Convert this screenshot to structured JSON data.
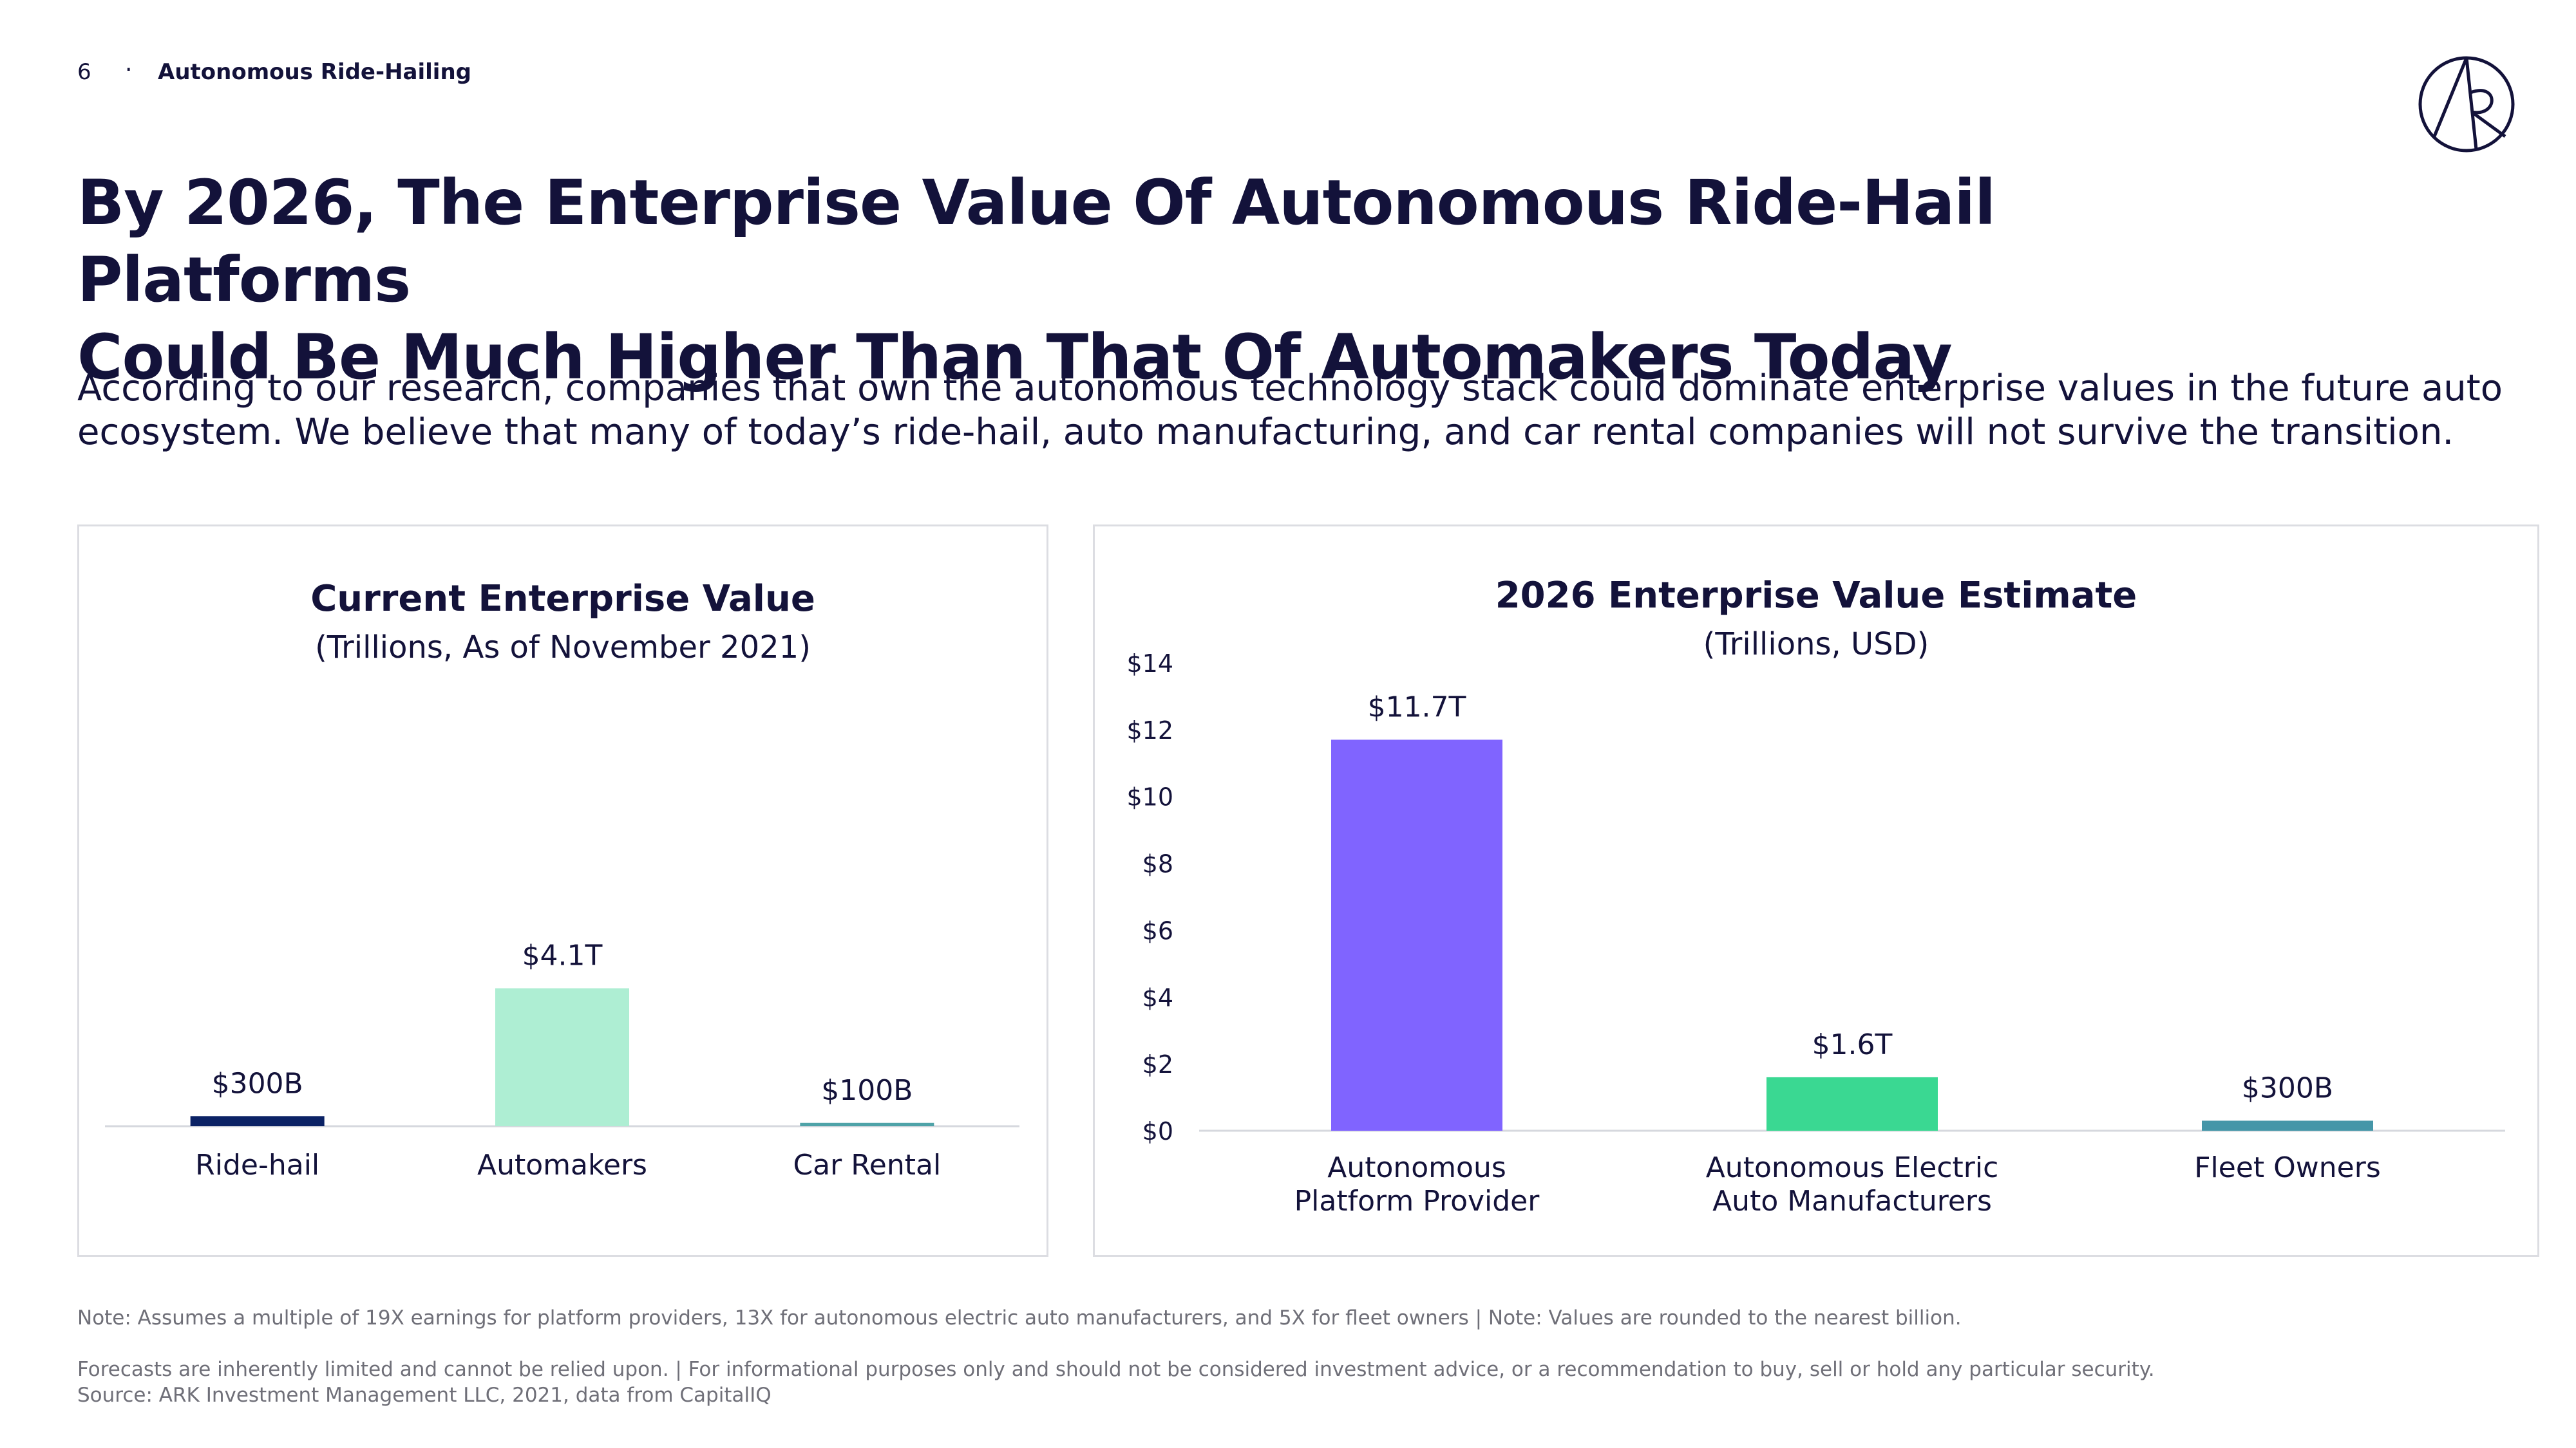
{
  "header": {
    "page_number": "6",
    "separator": "·",
    "section": "Autonomous Ride-Hailing"
  },
  "title": {
    "line1": "By 2026, The Enterprise Value Of Autonomous Ride-Hail Platforms",
    "line2": "Could Be Much Higher Than That Of Automakers Today"
  },
  "subtitle": {
    "line1": "According to our research, companies that own the autonomous technology stack could dominate enterprise values in the future auto",
    "line2": "ecosystem. We believe that many of today’s ride-hail, auto manufacturing, and car rental companies will not survive the transition."
  },
  "icons": {
    "logo": "ark-logo-icon"
  },
  "colors": {
    "navy": "#0b2265",
    "mint": "#aeeed3",
    "teal": "#4fa3a8",
    "purple": "#8064ff",
    "green": "#3ad892",
    "fleet": "#4596a8",
    "axis": "#d6d8de"
  },
  "chart_data": [
    {
      "type": "bar",
      "title": "Current Enterprise Value",
      "subtitle": "(Trillions, As of November 2021)",
      "categories": [
        "Ride-hail",
        "Automakers",
        "Car Rental"
      ],
      "values": [
        0.3,
        4.1,
        0.1
      ],
      "data_labels": [
        "$300B",
        "$4.1T",
        "$100B"
      ],
      "bar_colors": [
        "#0b2265",
        "#aeeed3",
        "#4fa3a8"
      ],
      "ylim": [
        0,
        14
      ],
      "y_axis_visible": false,
      "grid": false
    },
    {
      "type": "bar",
      "title": "2026 Enterprise Value Estimate",
      "subtitle": "(Trillions, USD)",
      "categories": [
        "Autonomous\nPlatform Provider",
        "Autonomous Electric\nAuto Manufacturers",
        "Fleet Owners"
      ],
      "values": [
        11.7,
        1.6,
        0.3
      ],
      "data_labels": [
        "$11.7T",
        "$1.6T",
        "$300B"
      ],
      "bar_colors": [
        "#8064ff",
        "#3ad892",
        "#4596a8"
      ],
      "y_ticks": [
        0,
        2,
        4,
        6,
        8,
        10,
        12,
        14
      ],
      "y_tick_labels": [
        "$0",
        "$2",
        "$4",
        "$6",
        "$8",
        "$10",
        "$12",
        "$14"
      ],
      "ylim": [
        0,
        14
      ],
      "grid": false
    }
  ],
  "footer": {
    "note1": "Note: Assumes a multiple of 19X earnings for platform providers, 13X for autonomous electric auto manufacturers, and 5X for fleet owners |  Note: Values are rounded to the nearest billion.",
    "note2": "Forecasts are inherently limited and cannot be relied upon. | For informational purposes only and should not be considered investment advice, or a recommendation to buy, sell or hold any particular security.",
    "note3": "Source: ARK Investment Management LLC, 2021, data from CapitalIQ"
  }
}
